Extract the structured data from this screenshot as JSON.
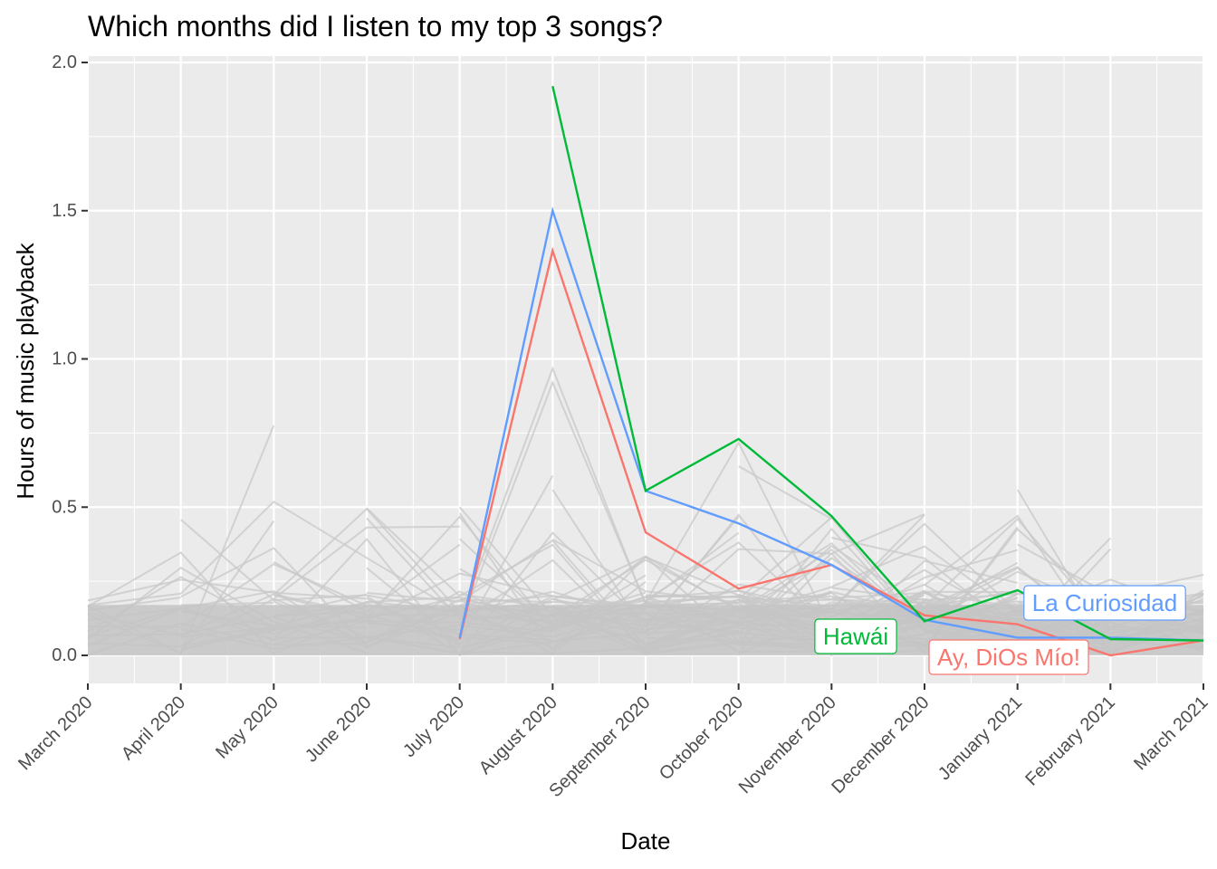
{
  "chart_data": {
    "type": "line",
    "title": "Which months did I listen to my top 3 songs?",
    "xlabel": "Date",
    "ylabel": "Hours of music playback",
    "x_ticks": [
      "March 2020",
      "April 2020",
      "May 2020",
      "June 2020",
      "July 2020",
      "August 2020",
      "September 2020",
      "October 2020",
      "November 2020",
      "December 2020",
      "January 2021",
      "February 2021",
      "March 2021"
    ],
    "y_ticks": [
      "0.0",
      "0.5",
      "1.0",
      "1.5",
      "2.0"
    ],
    "ylim": [
      -0.1,
      2.02
    ],
    "grid": true,
    "legend": "none (direct labels at right)",
    "colors": {
      "panel": "#ebebeb",
      "grid": "#ffffff",
      "background_lines": "#c8c8c8",
      "La Curiosidad": "#619cff",
      "Hawái": "#00ba38",
      "Ay, DiOs Mío!": "#f8766d"
    },
    "series": [
      {
        "name": "Hawái",
        "color": "#00ba38",
        "points": [
          {
            "x": "August 2020",
            "y": 1.92
          },
          {
            "x": "September 2020",
            "y": 0.555
          },
          {
            "x": "October 2020",
            "y": 0.73
          },
          {
            "x": "November 2020",
            "y": 0.47
          },
          {
            "x": "December 2020",
            "y": 0.115
          },
          {
            "x": "January 2021",
            "y": 0.22
          },
          {
            "x": "February 2021",
            "y": 0.055
          },
          {
            "x": "March 2021",
            "y": 0.05
          }
        ]
      },
      {
        "name": "La Curiosidad",
        "color": "#619cff",
        "points": [
          {
            "x": "July 2020",
            "y": 0.06
          },
          {
            "x": "August 2020",
            "y": 1.5
          },
          {
            "x": "September 2020",
            "y": 0.555
          },
          {
            "x": "October 2020",
            "y": 0.445
          },
          {
            "x": "November 2020",
            "y": 0.305
          },
          {
            "x": "December 2020",
            "y": 0.12
          },
          {
            "x": "January 2021",
            "y": 0.06
          },
          {
            "x": "February 2021",
            "y": 0.06
          },
          {
            "x": "March 2021",
            "y": 0.05
          }
        ]
      },
      {
        "name": "Ay, DiOs Mío!",
        "color": "#f8766d",
        "points": [
          {
            "x": "July 2020",
            "y": 0.055
          },
          {
            "x": "August 2020",
            "y": 1.365
          },
          {
            "x": "September 2020",
            "y": 0.415
          },
          {
            "x": "October 2020",
            "y": 0.225
          },
          {
            "x": "November 2020",
            "y": 0.305
          },
          {
            "x": "December 2020",
            "y": 0.135
          },
          {
            "x": "January 2021",
            "y": 0.105
          },
          {
            "x": "February 2021",
            "y": 0.0
          },
          {
            "x": "March 2021",
            "y": 0.05
          }
        ]
      }
    ],
    "labels": [
      {
        "text": "La Curiosidad",
        "color": "#619cff"
      },
      {
        "text": "Hawái",
        "color": "#00ba38"
      },
      {
        "text": "Ay, DiOs Mío!",
        "color": "#f8766d"
      }
    ]
  }
}
